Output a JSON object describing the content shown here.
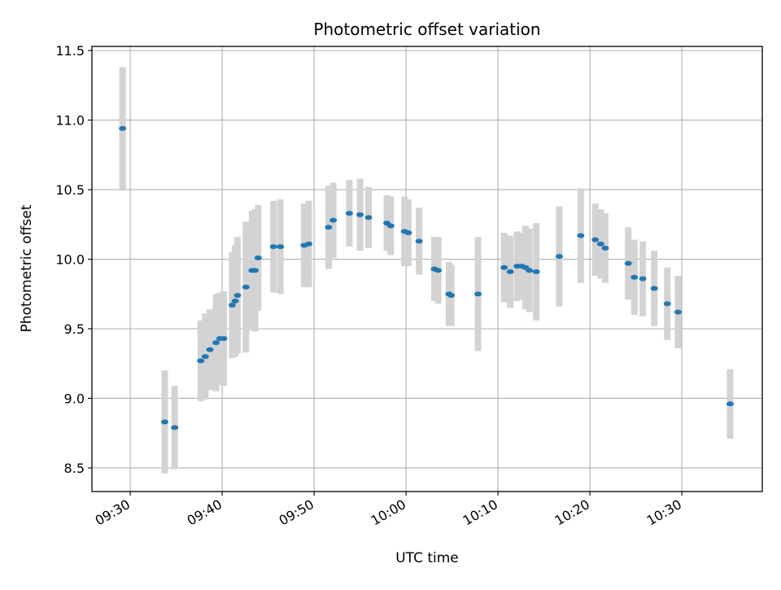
{
  "chart_data": {
    "type": "scatter",
    "title": "Photometric offset variation",
    "xlabel": "UTC time",
    "ylabel": "Photometric offset",
    "xlim": [
      "09:25:50",
      "10:38:45"
    ],
    "ylim": [
      8.33,
      11.53
    ],
    "grid": true,
    "legend": "none",
    "xticks": [
      "09:30",
      "09:40",
      "09:50",
      "10:00",
      "10:10",
      "10:20",
      "10:30"
    ],
    "yticks": [
      "8.5",
      "9.0",
      "9.5",
      "10.0",
      "10.5",
      "11.0",
      "11.5"
    ],
    "colors": {
      "point": "#1f77b4",
      "errorbar": "#d3d3d3",
      "grid": "#b0b0b0"
    },
    "series": [
      {
        "x": [
          "09:29:10",
          "09:33:45",
          "09:34:50",
          "09:37:40",
          "09:38:10",
          "09:38:40",
          "09:39:20",
          "09:39:45",
          "09:40:10",
          "09:41:05",
          "09:41:25",
          "09:41:40",
          "09:42:35",
          "09:43:15",
          "09:43:35",
          "09:43:55",
          "09:45:35",
          "09:46:20",
          "09:48:55",
          "09:49:25",
          "09:51:35",
          "09:52:05",
          "09:53:50",
          "09:55:00",
          "09:55:55",
          "09:57:55",
          "09:58:20",
          "09:59:50",
          "10:00:15",
          "10:01:25",
          "10:03:05",
          "10:03:30",
          "10:04:40",
          "10:04:55",
          "10:07:50",
          "10:10:40",
          "10:11:20",
          "10:12:05",
          "10:12:35",
          "10:13:00",
          "10:13:25",
          "10:14:10",
          "10:16:40",
          "10:19:00",
          "10:20:35",
          "10:21:10",
          "10:21:40",
          "10:24:10",
          "10:24:50",
          "10:25:45",
          "10:27:00",
          "10:28:25",
          "10:29:35",
          "10:35:15"
        ],
        "y": [
          10.94,
          8.83,
          8.79,
          9.27,
          9.3,
          9.35,
          9.4,
          9.43,
          9.43,
          9.67,
          9.7,
          9.74,
          9.8,
          9.92,
          9.92,
          10.01,
          10.09,
          10.09,
          10.1,
          10.11,
          10.23,
          10.28,
          10.33,
          10.32,
          10.3,
          10.26,
          10.24,
          10.2,
          10.19,
          10.13,
          9.93,
          9.92,
          9.75,
          9.74,
          9.75,
          9.94,
          9.91,
          9.95,
          9.95,
          9.94,
          9.92,
          9.91,
          10.02,
          10.17,
          10.14,
          10.11,
          10.08,
          9.97,
          9.87,
          9.86,
          9.79,
          9.68,
          9.62,
          8.96
        ],
        "yerr": [
          0.44,
          0.37,
          0.3,
          0.29,
          0.31,
          0.29,
          0.35,
          0.33,
          0.34,
          0.38,
          0.4,
          0.42,
          0.47,
          0.43,
          0.44,
          0.38,
          0.33,
          0.34,
          0.3,
          0.31,
          0.3,
          0.27,
          0.24,
          0.26,
          0.22,
          0.2,
          0.21,
          0.25,
          0.24,
          0.24,
          0.23,
          0.24,
          0.23,
          0.22,
          0.41,
          0.25,
          0.26,
          0.25,
          0.24,
          0.3,
          0.3,
          0.35,
          0.36,
          0.34,
          0.26,
          0.25,
          0.25,
          0.26,
          0.27,
          0.27,
          0.27,
          0.26,
          0.26,
          0.25
        ]
      }
    ]
  }
}
